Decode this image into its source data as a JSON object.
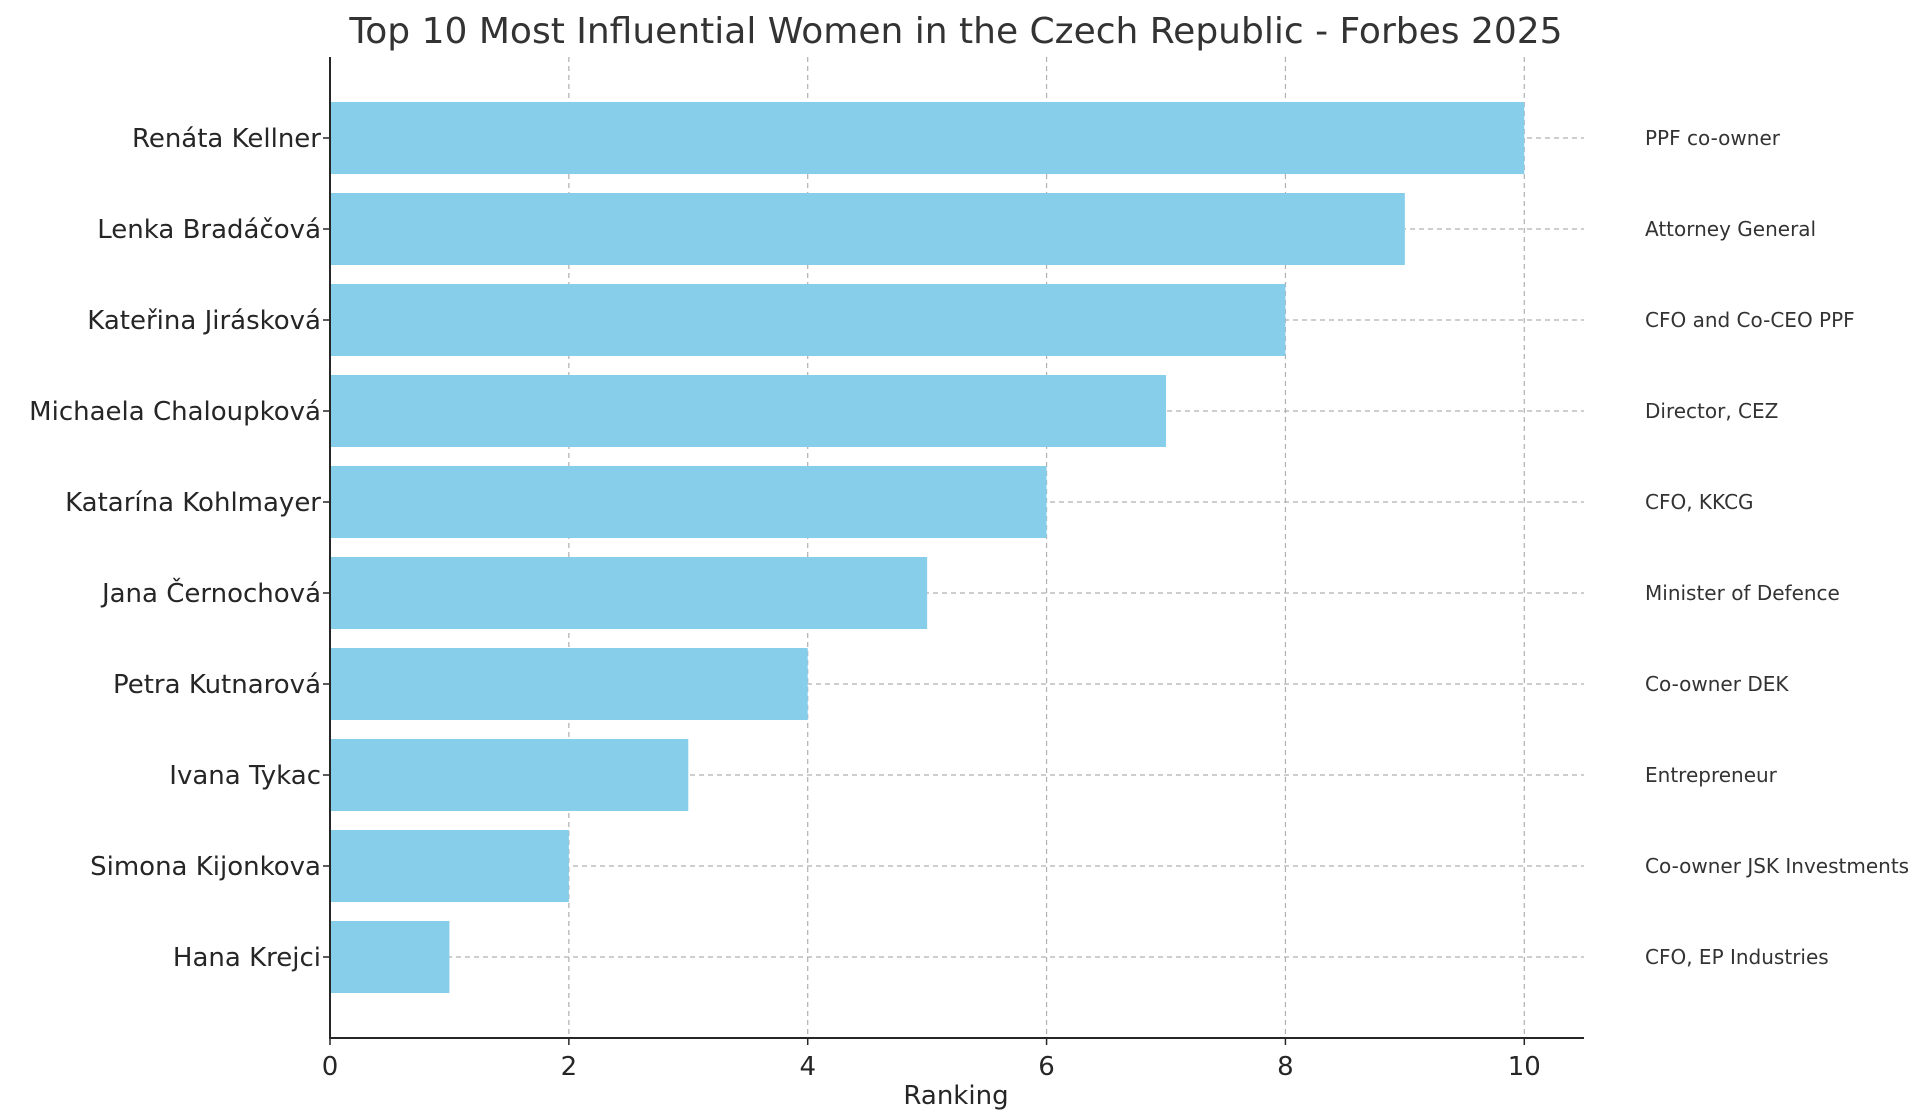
{
  "chart_data": {
    "type": "bar",
    "orientation": "horizontal",
    "title": "Top 10 Most Influential Women in the Czech Republic - Forbes 2025",
    "xlabel": "Ranking",
    "ylabel": "",
    "xlim": [
      0,
      10.5
    ],
    "xticks": [
      0,
      2,
      4,
      6,
      8,
      10
    ],
    "grid": true,
    "bar_color": "#87CEEB",
    "categories": [
      "Renáta Kellner",
      "Lenka Bradáčová",
      "Kateřina Jirásková",
      "Michaela Chaloupková",
      "Katarína Kohlmayer",
      "Jana Černochová",
      "Petra Kutnarová",
      "Ivana Tykac",
      "Simona Kijonkova",
      "Hana Krejci"
    ],
    "values": [
      10,
      9,
      8,
      7,
      6,
      5,
      4,
      3,
      2,
      1
    ],
    "annotations": [
      "PPF co-owner",
      "Attorney General",
      "CFO and Co-CEO PPF",
      "Director, CEZ",
      "CFO, KKCG",
      "Minister of Defence",
      "Co-owner DEK",
      "Entrepreneur",
      "Co-owner JSK Investments",
      "CFO, EP Industries"
    ]
  }
}
